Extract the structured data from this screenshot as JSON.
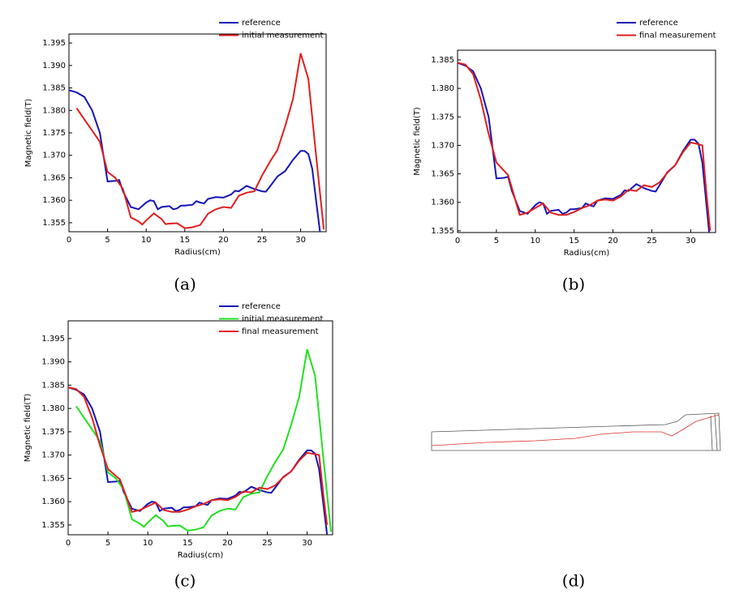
{
  "captions": [
    "(a)",
    "(b)",
    "(c)",
    "(d)"
  ],
  "chart_data": [
    {
      "type": "line",
      "xlabel": "Radius(cm)",
      "ylabel": "Magnetic field(T)",
      "legend": "top-right",
      "xlim": [
        0,
        33.3
      ],
      "xticks": [
        0,
        5,
        10,
        15,
        20,
        25,
        30
      ],
      "ylim": [
        1.353,
        1.397
      ],
      "yticks": [
        1.355,
        {
          "value": 1.36,
          "label": "1.360"
        },
        1.365,
        {
          "value": 1.37,
          "label": "1.370"
        },
        1.375,
        {
          "value": 1.38,
          "label": "1.380"
        },
        1.385,
        {
          "value": 1.39,
          "label": "1.390"
        },
        1.395
      ],
      "series": [
        {
          "name": "reference",
          "color": "#1414b4",
          "x": [
            0,
            1,
            2,
            3,
            4,
            5,
            6,
            6.5,
            7,
            8,
            9,
            10,
            10.5,
            11,
            11.5,
            12,
            13,
            13.5,
            14,
            14.5,
            15,
            16,
            16.5,
            17,
            17.5,
            18,
            19,
            20,
            21,
            21.5,
            22,
            23,
            24,
            25,
            25.5,
            26,
            27,
            28,
            29,
            30,
            30.5,
            31,
            31.5,
            32,
            32.5
          ],
          "values": [
            1.3845,
            1.384,
            1.383,
            1.38,
            1.375,
            1.3642,
            1.3643,
            1.3645,
            1.362,
            1.3585,
            1.358,
            1.3595,
            1.36,
            1.3598,
            1.358,
            1.3585,
            1.3587,
            1.358,
            1.3582,
            1.3588,
            1.3588,
            1.359,
            1.3598,
            1.3595,
            1.3593,
            1.3603,
            1.3607,
            1.3606,
            1.3613,
            1.3621,
            1.362,
            1.3632,
            1.3625,
            1.362,
            1.3619,
            1.363,
            1.3653,
            1.3665,
            1.369,
            1.371,
            1.371,
            1.3703,
            1.367,
            1.36,
            1.353
          ]
        },
        {
          "name": "initial measurement",
          "color": "#e01e1e",
          "x": [
            1,
            2,
            3,
            4,
            5,
            6,
            7,
            8,
            9,
            9.5,
            10,
            11,
            12,
            12.5,
            13,
            14,
            15,
            16,
            17,
            18,
            19,
            20,
            21,
            22,
            23,
            24,
            25,
            26,
            27,
            28,
            29,
            30,
            31,
            32,
            33
          ],
          "values": [
            1.3805,
            1.378,
            1.3755,
            1.373,
            1.3663,
            1.365,
            1.3625,
            1.3562,
            1.3553,
            1.3546,
            1.3555,
            1.3571,
            1.3558,
            1.3547,
            1.3548,
            1.3549,
            1.3538,
            1.354,
            1.3545,
            1.357,
            1.358,
            1.3585,
            1.3583,
            1.361,
            1.3617,
            1.362,
            1.3655,
            1.3685,
            1.3712,
            1.3765,
            1.3825,
            1.3927,
            1.387,
            1.37,
            1.3535
          ]
        }
      ]
    },
    {
      "type": "line",
      "xlabel": "Radius(cm)",
      "ylabel": "Magnetic field(T)",
      "legend": "top-right",
      "xlim": [
        0,
        33.2
      ],
      "xticks": [
        0,
        5,
        10,
        15,
        20,
        25,
        30
      ],
      "ylim": [
        1.3547,
        1.3867
      ],
      "yticks": [
        1.355,
        {
          "value": 1.36,
          "label": "1.360"
        },
        1.365,
        {
          "value": 1.37,
          "label": "1.370"
        },
        1.375,
        {
          "value": 1.38,
          "label": "1.380"
        },
        1.385
      ],
      "series": [
        {
          "name": "reference",
          "color": "#1414b4",
          "x": [
            0,
            1,
            2,
            3,
            4,
            5,
            6,
            6.5,
            7,
            8,
            9,
            10,
            10.5,
            11,
            11.5,
            12,
            13,
            13.5,
            14,
            14.5,
            15,
            16,
            16.5,
            17,
            17.5,
            18,
            19,
            20,
            21,
            21.5,
            22,
            23,
            24,
            25,
            25.5,
            26,
            27,
            28,
            29,
            30,
            30.5,
            31,
            31.5,
            32,
            32.5
          ],
          "values": [
            1.3845,
            1.384,
            1.383,
            1.38,
            1.375,
            1.3642,
            1.3643,
            1.3645,
            1.362,
            1.3585,
            1.358,
            1.3595,
            1.36,
            1.3598,
            1.358,
            1.3585,
            1.3587,
            1.358,
            1.3582,
            1.3588,
            1.3588,
            1.359,
            1.3598,
            1.3595,
            1.3593,
            1.3603,
            1.3607,
            1.3606,
            1.3613,
            1.3621,
            1.362,
            1.3632,
            1.3625,
            1.362,
            1.3619,
            1.363,
            1.3653,
            1.3665,
            1.369,
            1.371,
            1.371,
            1.3703,
            1.367,
            1.36,
            1.353
          ]
        },
        {
          "name": "final measurement",
          "color": "#e01e1e",
          "x": [
            0,
            1,
            2,
            3,
            4,
            5,
            6,
            6.5,
            7,
            8,
            9,
            10,
            11,
            12,
            13,
            14,
            15,
            16,
            17,
            18,
            19,
            20,
            21,
            22,
            23,
            24,
            25,
            26,
            27,
            28,
            29,
            30,
            31,
            31.5,
            32,
            32.5
          ],
          "values": [
            1.3845,
            1.3842,
            1.3825,
            1.378,
            1.372,
            1.367,
            1.3655,
            1.3648,
            1.3625,
            1.3578,
            1.3582,
            1.359,
            1.3598,
            1.3582,
            1.3578,
            1.3578,
            1.3583,
            1.359,
            1.3595,
            1.3603,
            1.3605,
            1.3603,
            1.361,
            1.3622,
            1.362,
            1.363,
            1.3627,
            1.3635,
            1.3652,
            1.3665,
            1.3688,
            1.3705,
            1.3702,
            1.37,
            1.362,
            1.355
          ]
        }
      ]
    },
    {
      "type": "line",
      "xlabel": "Radius(cm)",
      "ylabel": "Magnetic field(T)",
      "legend": "top-right",
      "xlim": [
        0,
        33.2
      ],
      "xticks": [
        0,
        5,
        10,
        15,
        20,
        25,
        30
      ],
      "ylim": [
        1.3529,
        1.3988
      ],
      "yticks": [
        1.355,
        {
          "value": 1.36,
          "label": "1.360"
        },
        1.365,
        {
          "value": 1.37,
          "label": "1.370"
        },
        1.375,
        {
          "value": 1.38,
          "label": "1.380"
        },
        1.385,
        {
          "value": 1.39,
          "label": "1.390"
        },
        1.395
      ],
      "series": [
        {
          "name": "reference",
          "color": "#1414b4",
          "x": [
            0,
            1,
            2,
            3,
            4,
            5,
            6,
            6.5,
            7,
            8,
            9,
            10,
            10.5,
            11,
            11.5,
            12,
            13,
            13.5,
            14,
            14.5,
            15,
            16,
            16.5,
            17,
            17.5,
            18,
            19,
            20,
            21,
            21.5,
            22,
            23,
            24,
            25,
            25.5,
            26,
            27,
            28,
            29,
            30,
            30.5,
            31,
            31.5,
            32,
            32.5
          ],
          "values": [
            1.3845,
            1.384,
            1.383,
            1.38,
            1.375,
            1.3642,
            1.3643,
            1.3645,
            1.362,
            1.3585,
            1.358,
            1.3595,
            1.36,
            1.3598,
            1.358,
            1.3585,
            1.3587,
            1.358,
            1.3582,
            1.3588,
            1.3588,
            1.359,
            1.3598,
            1.3595,
            1.3593,
            1.3603,
            1.3607,
            1.3606,
            1.3613,
            1.3621,
            1.362,
            1.3632,
            1.3625,
            1.362,
            1.3619,
            1.363,
            1.3653,
            1.3665,
            1.369,
            1.371,
            1.371,
            1.3703,
            1.367,
            1.36,
            1.353
          ]
        },
        {
          "name": "initial measurement",
          "color": "#22e022",
          "x": [
            1,
            2,
            3,
            4,
            5,
            6,
            7,
            8,
            9,
            9.5,
            10,
            11,
            12,
            12.5,
            13,
            14,
            15,
            16,
            17,
            18,
            19,
            20,
            21,
            22,
            23,
            24,
            25,
            26,
            27,
            28,
            29,
            30,
            31,
            32,
            33
          ],
          "values": [
            1.3805,
            1.378,
            1.3755,
            1.373,
            1.3663,
            1.365,
            1.3625,
            1.3562,
            1.3553,
            1.3546,
            1.3555,
            1.3571,
            1.3558,
            1.3547,
            1.3548,
            1.3549,
            1.3538,
            1.354,
            1.3545,
            1.357,
            1.358,
            1.3585,
            1.3583,
            1.361,
            1.3617,
            1.362,
            1.3655,
            1.3685,
            1.3712,
            1.3765,
            1.3825,
            1.3927,
            1.387,
            1.37,
            1.3535
          ]
        },
        {
          "name": "final measurement",
          "color": "#e01e1e",
          "x": [
            0,
            1,
            2,
            3,
            4,
            5,
            6,
            6.5,
            7,
            8,
            9,
            10,
            11,
            12,
            13,
            14,
            15,
            16,
            17,
            18,
            19,
            20,
            21,
            22,
            23,
            24,
            25,
            26,
            27,
            28,
            29,
            30,
            31,
            31.5,
            32,
            32.5
          ],
          "values": [
            1.3845,
            1.3842,
            1.3825,
            1.378,
            1.372,
            1.367,
            1.3655,
            1.3648,
            1.3625,
            1.3578,
            1.3582,
            1.359,
            1.3598,
            1.3582,
            1.3578,
            1.3578,
            1.3583,
            1.359,
            1.3595,
            1.3603,
            1.3605,
            1.3603,
            1.361,
            1.3622,
            1.362,
            1.363,
            1.3627,
            1.3635,
            1.3652,
            1.3665,
            1.3688,
            1.3705,
            1.3702,
            1.37,
            1.362,
            1.355
          ]
        }
      ]
    }
  ]
}
